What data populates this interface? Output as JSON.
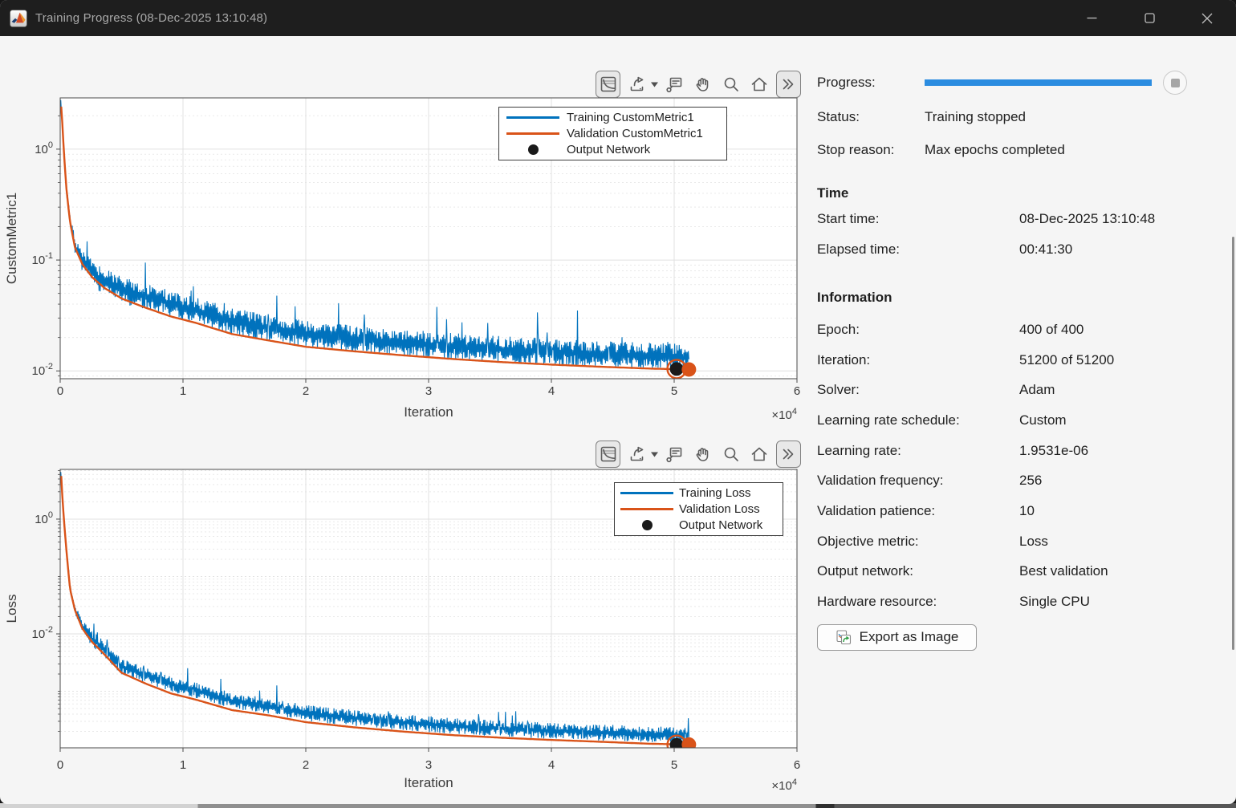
{
  "window": {
    "title": "Training Progress (08-Dec-2025 13:10:48)",
    "app_icon": "matlab-logo",
    "controls": [
      "minimize",
      "maximize",
      "close"
    ]
  },
  "toolbar": {
    "icons": [
      "subplots-icon",
      "export-icon",
      "caret-down-icon",
      "datatips-icon",
      "pan-icon",
      "zoom-icon",
      "home-icon",
      "more-tools-icon"
    ]
  },
  "panel": {
    "progress": {
      "label": "Progress:",
      "percent": 100,
      "bar_color": "#2b8ce0"
    },
    "status": {
      "label": "Status:",
      "value": "Training stopped"
    },
    "stop_reason": {
      "label": "Stop reason:",
      "value": "Max epochs completed"
    },
    "time": {
      "header": "Time",
      "rows": [
        {
          "label": "Start time:",
          "value": "08-Dec-2025 13:10:48"
        },
        {
          "label": "Elapsed time:",
          "value": "00:41:30"
        }
      ]
    },
    "information": {
      "header": "Information",
      "rows": [
        {
          "label": "Epoch:",
          "value": "400 of 400"
        },
        {
          "label": "Iteration:",
          "value": "51200 of 51200"
        },
        {
          "label": "Solver:",
          "value": "Adam"
        },
        {
          "label": "Learning rate schedule:",
          "value": "Custom"
        },
        {
          "label": "Learning rate:",
          "value": "1.9531e-06"
        },
        {
          "label": "Validation frequency:",
          "value": "256"
        },
        {
          "label": "Validation patience:",
          "value": "10"
        },
        {
          "label": "Objective metric:",
          "value": "Loss"
        },
        {
          "label": "Output network:",
          "value": "Best validation"
        },
        {
          "label": "Hardware resource:",
          "value": "Single CPU"
        }
      ]
    },
    "export_button": {
      "label": "Export as Image"
    }
  },
  "chart_data": [
    {
      "type": "line",
      "xlabel": "Iteration",
      "ylabel": "CustomMetric1",
      "x_scale_label": {
        "base": "×10",
        "exp": "4"
      },
      "xlim": [
        0,
        60000
      ],
      "xticks": [
        0,
        10000,
        20000,
        30000,
        40000,
        50000,
        60000
      ],
      "xtick_labels": [
        "0",
        "1",
        "2",
        "3",
        "4",
        "5",
        "6"
      ],
      "yscale": "log",
      "ylim": [
        0.0085,
        2.9
      ],
      "ytick_exponents": [
        0,
        -1,
        -2
      ],
      "grid": {
        "major": true,
        "y_minor": true
      },
      "legend_items": [
        {
          "type": "line",
          "color": "#0072BD",
          "label": "Training CustomMetric1"
        },
        {
          "type": "line",
          "color": "#D95319",
          "label": "Validation CustomMetric1"
        },
        {
          "type": "dot",
          "color": "#1a1a1a",
          "label": "Output Network"
        }
      ],
      "series": [
        {
          "name": "Training CustomMetric1",
          "color": "#0072BD",
          "style": "noisy",
          "x_end": 51200,
          "noise_decades": 0.05,
          "zigzag_decades": 0.07,
          "spike_decades": 0.3,
          "late_multiplier": 0.3,
          "trend": [
            [
              0,
              2.2
            ],
            [
              60,
              2.65
            ],
            [
              150,
              1.9
            ],
            [
              300,
              0.95
            ],
            [
              500,
              0.45
            ],
            [
              800,
              0.22
            ],
            [
              1200,
              0.13
            ],
            [
              1800,
              0.092
            ],
            [
              2600,
              0.07
            ],
            [
              3600,
              0.056
            ],
            [
              5000,
              0.045
            ],
            [
              7000,
              0.037
            ],
            [
              9000,
              0.031
            ],
            [
              11000,
              0.0272
            ],
            [
              14000,
              0.0215
            ],
            [
              17000,
              0.0188
            ],
            [
              20000,
              0.0165
            ],
            [
              24000,
              0.015
            ],
            [
              28000,
              0.0138
            ],
            [
              32000,
              0.0128
            ],
            [
              36000,
              0.012
            ],
            [
              40000,
              0.0114
            ],
            [
              44000,
              0.0109
            ],
            [
              48000,
              0.0105
            ],
            [
              51200,
              0.0103
            ]
          ]
        },
        {
          "name": "Validation CustomMetric1",
          "color": "#D95319",
          "style": "smooth",
          "x_end": 51200,
          "trend": [
            [
              0,
              2.2
            ],
            [
              60,
              2.65
            ],
            [
              150,
              1.9
            ],
            [
              300,
              0.95
            ],
            [
              500,
              0.45
            ],
            [
              800,
              0.22
            ],
            [
              1200,
              0.13
            ],
            [
              1800,
              0.092
            ],
            [
              2600,
              0.07
            ],
            [
              3600,
              0.056
            ],
            [
              5000,
              0.045
            ],
            [
              7000,
              0.037
            ],
            [
              9000,
              0.031
            ],
            [
              11000,
              0.0272
            ],
            [
              14000,
              0.0215
            ],
            [
              17000,
              0.0188
            ],
            [
              20000,
              0.0165
            ],
            [
              24000,
              0.015
            ],
            [
              28000,
              0.0138
            ],
            [
              32000,
              0.0128
            ],
            [
              36000,
              0.012
            ],
            [
              40000,
              0.0114
            ],
            [
              44000,
              0.0109
            ],
            [
              48000,
              0.0105
            ],
            [
              51200,
              0.0103
            ]
          ]
        }
      ],
      "output_network": {
        "x": 50200,
        "y": 0.0104,
        "label": "Output Network"
      },
      "final_validation": {
        "x": 51200,
        "y": 0.0103
      }
    },
    {
      "type": "line",
      "xlabel": "Iteration",
      "ylabel": "Loss",
      "x_scale_label": {
        "base": "×10",
        "exp": "4"
      },
      "xlim": [
        0,
        60000
      ],
      "xticks": [
        0,
        10000,
        20000,
        30000,
        40000,
        50000,
        60000
      ],
      "xtick_labels": [
        "0",
        "1",
        "2",
        "3",
        "4",
        "5",
        "6"
      ],
      "yscale": "log",
      "ylim": [
        0.0001035,
        7.35
      ],
      "ytick_exponents": [
        0,
        -2,
        -4
      ],
      "grid": {
        "major": true,
        "y_minor": true
      },
      "legend_items": [
        {
          "type": "line",
          "color": "#0072BD",
          "label": "Training Loss"
        },
        {
          "type": "line",
          "color": "#D95319",
          "label": "Validation Loss"
        },
        {
          "type": "dot",
          "color": "#1a1a1a",
          "label": "Output Network"
        }
      ],
      "series": [
        {
          "name": "Training Loss",
          "color": "#0072BD",
          "style": "noisy",
          "x_end": 51200,
          "noise_decades": 0.06,
          "zigzag_decades": 0.08,
          "spike_decades": 0.32,
          "late_multiplier": 0.45,
          "trend": [
            [
              0,
              4.5
            ],
            [
              60,
              7.2
            ],
            [
              150,
              3.0
            ],
            [
              300,
              1.0
            ],
            [
              500,
              0.3
            ],
            [
              800,
              0.06
            ],
            [
              1200,
              0.026
            ],
            [
              1800,
              0.0125
            ],
            [
              2600,
              0.0072
            ],
            [
              3600,
              0.0044
            ],
            [
              5000,
              0.0021
            ],
            [
              7000,
              0.00135
            ],
            [
              9000,
              0.00092
            ],
            [
              11000,
              0.00072
            ],
            [
              14000,
              0.00047
            ],
            [
              17000,
              0.00038
            ],
            [
              20000,
              0.00029
            ],
            [
              24000,
              0.000235
            ],
            [
              28000,
              0.000198
            ],
            [
              32000,
              0.000172
            ],
            [
              36000,
              0.000155
            ],
            [
              40000,
              0.000142
            ],
            [
              44000,
              0.000132
            ],
            [
              48000,
              0.000122
            ],
            [
              51200,
              0.000118
            ]
          ]
        },
        {
          "name": "Validation Loss",
          "color": "#D95319",
          "style": "smooth",
          "x_end": 51200,
          "trend": [
            [
              0,
              4.5
            ],
            [
              60,
              7.2
            ],
            [
              150,
              3.0
            ],
            [
              300,
              1.0
            ],
            [
              500,
              0.3
            ],
            [
              800,
              0.06
            ],
            [
              1200,
              0.026
            ],
            [
              1800,
              0.0125
            ],
            [
              2600,
              0.0072
            ],
            [
              3600,
              0.0044
            ],
            [
              5000,
              0.0021
            ],
            [
              7000,
              0.00135
            ],
            [
              9000,
              0.00092
            ],
            [
              11000,
              0.00072
            ],
            [
              14000,
              0.00047
            ],
            [
              17000,
              0.00038
            ],
            [
              20000,
              0.00029
            ],
            [
              24000,
              0.000235
            ],
            [
              28000,
              0.000198
            ],
            [
              32000,
              0.000172
            ],
            [
              36000,
              0.000155
            ],
            [
              40000,
              0.000142
            ],
            [
              44000,
              0.000132
            ],
            [
              48000,
              0.000122
            ],
            [
              51200,
              0.000118
            ]
          ]
        }
      ],
      "output_network": {
        "x": 50200,
        "y": 0.000117,
        "label": "Output Network"
      },
      "final_validation": {
        "x": 51200,
        "y": 0.000118
      }
    }
  ]
}
